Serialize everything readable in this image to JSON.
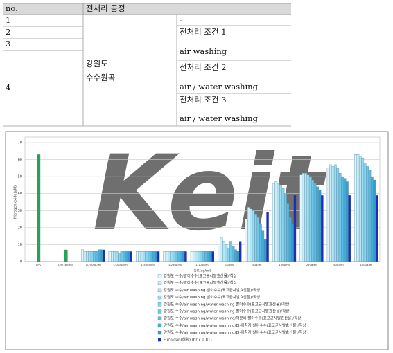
{
  "table": {
    "header": [
      "no.",
      "전처리 공정"
    ],
    "no": [
      "1",
      "2",
      "3",
      "4"
    ],
    "region": [
      "강원도",
      "수수원곡"
    ],
    "conditions": [
      [
        "-"
      ],
      [
        "전처리 조건 1",
        "air washing"
      ],
      [
        "전처리 조건 2",
        "air / water washing"
      ],
      [
        "전처리 조건 3",
        "air / water washing"
      ]
    ]
  },
  "chart_data": {
    "type": "bar",
    "watermark": "Keit",
    "y_label": "Nitrogen oxide(uM)",
    "x_label": "농도(ug/ml)",
    "categories": [
      "LPS",
      "C/S(control)",
      "1/250ug/ml",
      "1/100ug/ml",
      "1/50ug/ml",
      "1/25ug/ml",
      "1/10ug/ml",
      "1ug/ml",
      "5ug/ml",
      "10ug/ml",
      "25ug/ml",
      "50ug/ml",
      "100ug/ml"
    ],
    "ylim": [
      0,
      70
    ],
    "yticks": [
      0,
      10,
      20,
      30,
      40,
      50,
      60,
      70
    ],
    "grid": true,
    "control": {
      "color": "#2ca05a",
      "values": [
        63,
        7,
        null,
        null,
        null,
        null,
        null,
        null,
        null,
        null,
        null,
        null,
        null
      ]
    },
    "series": [
      {
        "name": "강원도 수수/발아수수(표고균사발효산물)/착상",
        "color": "#e4f5fb",
        "values": [
          null,
          null,
          7,
          6,
          6,
          6,
          6,
          9,
          25,
          46,
          51,
          55,
          63
        ]
      },
      {
        "name": "강원도 수수/발아수수(표고균사발효산물)/착상",
        "color": "#cdeef8",
        "values": [
          null,
          null,
          6,
          6,
          6,
          6,
          6,
          14,
          32,
          47,
          52,
          57,
          63
        ]
      },
      {
        "name": "강원도 수수/air washing 발아수수(표고균사발효산물)/착상",
        "color": "#b6e5f4",
        "values": [
          null,
          null,
          6,
          6,
          6,
          6,
          6,
          12,
          31,
          46,
          52,
          56,
          62
        ]
      },
      {
        "name": "강원도 수수/air washing 발아수수(표고균사발효산물)/착상",
        "color": "#9fdcf0",
        "values": [
          null,
          null,
          6,
          6,
          6,
          6,
          6,
          10,
          30,
          45,
          51,
          57,
          61
        ]
      },
      {
        "name": "강원도 수수/air washing/water washing 발아수수(표고균사발효산물)/착상",
        "color": "#87d2ec",
        "values": [
          null,
          null,
          6,
          5,
          6,
          6,
          6,
          8,
          28,
          43,
          50,
          55,
          58
        ]
      },
      {
        "name": "강원도 수수/air washing/water washing 발아수수(표고균사발효산물)/착상",
        "color": "#70c6e6",
        "values": [
          null,
          null,
          6,
          6,
          6,
          6,
          6,
          12,
          26,
          40,
          48,
          52,
          56
        ]
      },
      {
        "name": "강원도 수수/air washing/water washing/재분쇄 발아수수(표고균사발효산물)/착상",
        "color": "#5ab9df",
        "values": [
          null,
          null,
          6,
          6,
          6,
          6,
          6,
          9,
          22,
          34,
          46,
          50,
          54
        ]
      },
      {
        "name": "강원도 수수/air washing/water washing/EI-아침지 발아수수(표고균사발효산물)/착상",
        "color": "#45abd6",
        "values": [
          null,
          null,
          7,
          6,
          6,
          6,
          6,
          7,
          18,
          26,
          44,
          49,
          50
        ]
      },
      {
        "name": "강원도 수수/air washing/water washing/EI-아침지 발아수수(표고균사발효산물)/착상",
        "color": "#329cca",
        "values": [
          null,
          null,
          7,
          6,
          6,
          6,
          6,
          6,
          13,
          22,
          42,
          47,
          48
        ]
      },
      {
        "name": "Fucoidan(해원) (brix 0.81)",
        "color": "#1f2fb5",
        "values": [
          null,
          null,
          7,
          6,
          6,
          6,
          6,
          12,
          29,
          39,
          39,
          39,
          39
        ]
      }
    ]
  }
}
